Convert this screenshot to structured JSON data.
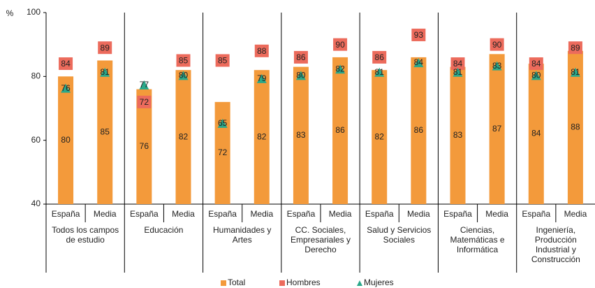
{
  "chart_data": {
    "type": "bar",
    "y_label": "%",
    "groups": [
      "Todos los campos de estudio",
      "Educación",
      "Humanidades y Artes",
      "CC. Sociales, Empresariales y Derecho",
      "Salud y Servicios Sociales",
      "Ciencias, Matemáticas e Informática",
      "Ingeniería, Producción Industrial y Construcción"
    ],
    "categories": [
      "España",
      "Media",
      "España",
      "Media",
      "España",
      "Media",
      "España",
      "Media",
      "España",
      "Media",
      "España",
      "Media",
      "España",
      "Media"
    ],
    "series": [
      {
        "name": "Total",
        "color": "#f39a3b",
        "values": [
          80,
          85,
          76,
          82,
          72,
          82,
          83,
          86,
          82,
          86,
          83,
          87,
          84,
          88
        ]
      },
      {
        "name": "Hombres",
        "color": "#ec6b5c",
        "values": [
          84,
          89,
          72,
          85,
          85,
          88,
          86,
          90,
          86,
          93,
          84,
          90,
          84,
          89
        ]
      },
      {
        "name": "Mujeres",
        "color": "#2aa88a",
        "values": [
          76,
          81,
          77,
          80,
          65,
          79,
          80,
          82,
          81,
          84,
          81,
          83,
          80,
          81
        ]
      }
    ],
    "ylim": [
      40,
      100
    ],
    "yticks": [
      40,
      60,
      80,
      100
    ]
  }
}
